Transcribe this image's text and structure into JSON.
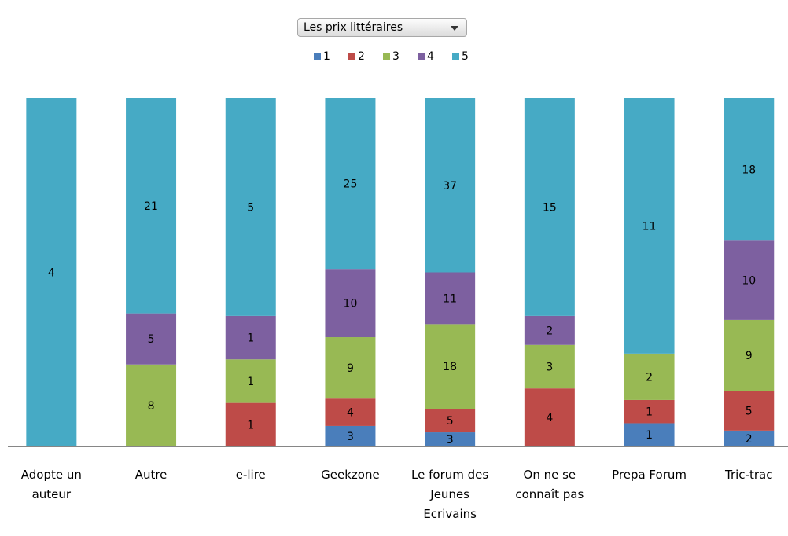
{
  "chart_data": {
    "type": "bar",
    "stacked": "percent",
    "filter_label": "Les prix littéraires",
    "categories": [
      "Adopte un auteur",
      "Autre",
      "e-lire",
      "Geekzone",
      "Le forum des Jeunes Ecrivains",
      "On ne se connaît pas",
      "Prepa Forum",
      "Tric-trac"
    ],
    "series": [
      {
        "name": "1",
        "color": "#4a7ebb",
        "values": [
          null,
          null,
          null,
          3,
          3,
          null,
          1,
          2
        ]
      },
      {
        "name": "2",
        "color": "#be4b48",
        "values": [
          null,
          null,
          1,
          4,
          5,
          4,
          1,
          5
        ]
      },
      {
        "name": "3",
        "color": "#98b954",
        "values": [
          null,
          8,
          1,
          9,
          18,
          3,
          2,
          9
        ]
      },
      {
        "name": "4",
        "color": "#7d60a0",
        "values": [
          null,
          5,
          1,
          10,
          11,
          2,
          null,
          10
        ]
      },
      {
        "name": "5",
        "color": "#46aac5",
        "values": [
          4,
          21,
          5,
          25,
          37,
          15,
          11,
          18
        ]
      }
    ]
  }
}
